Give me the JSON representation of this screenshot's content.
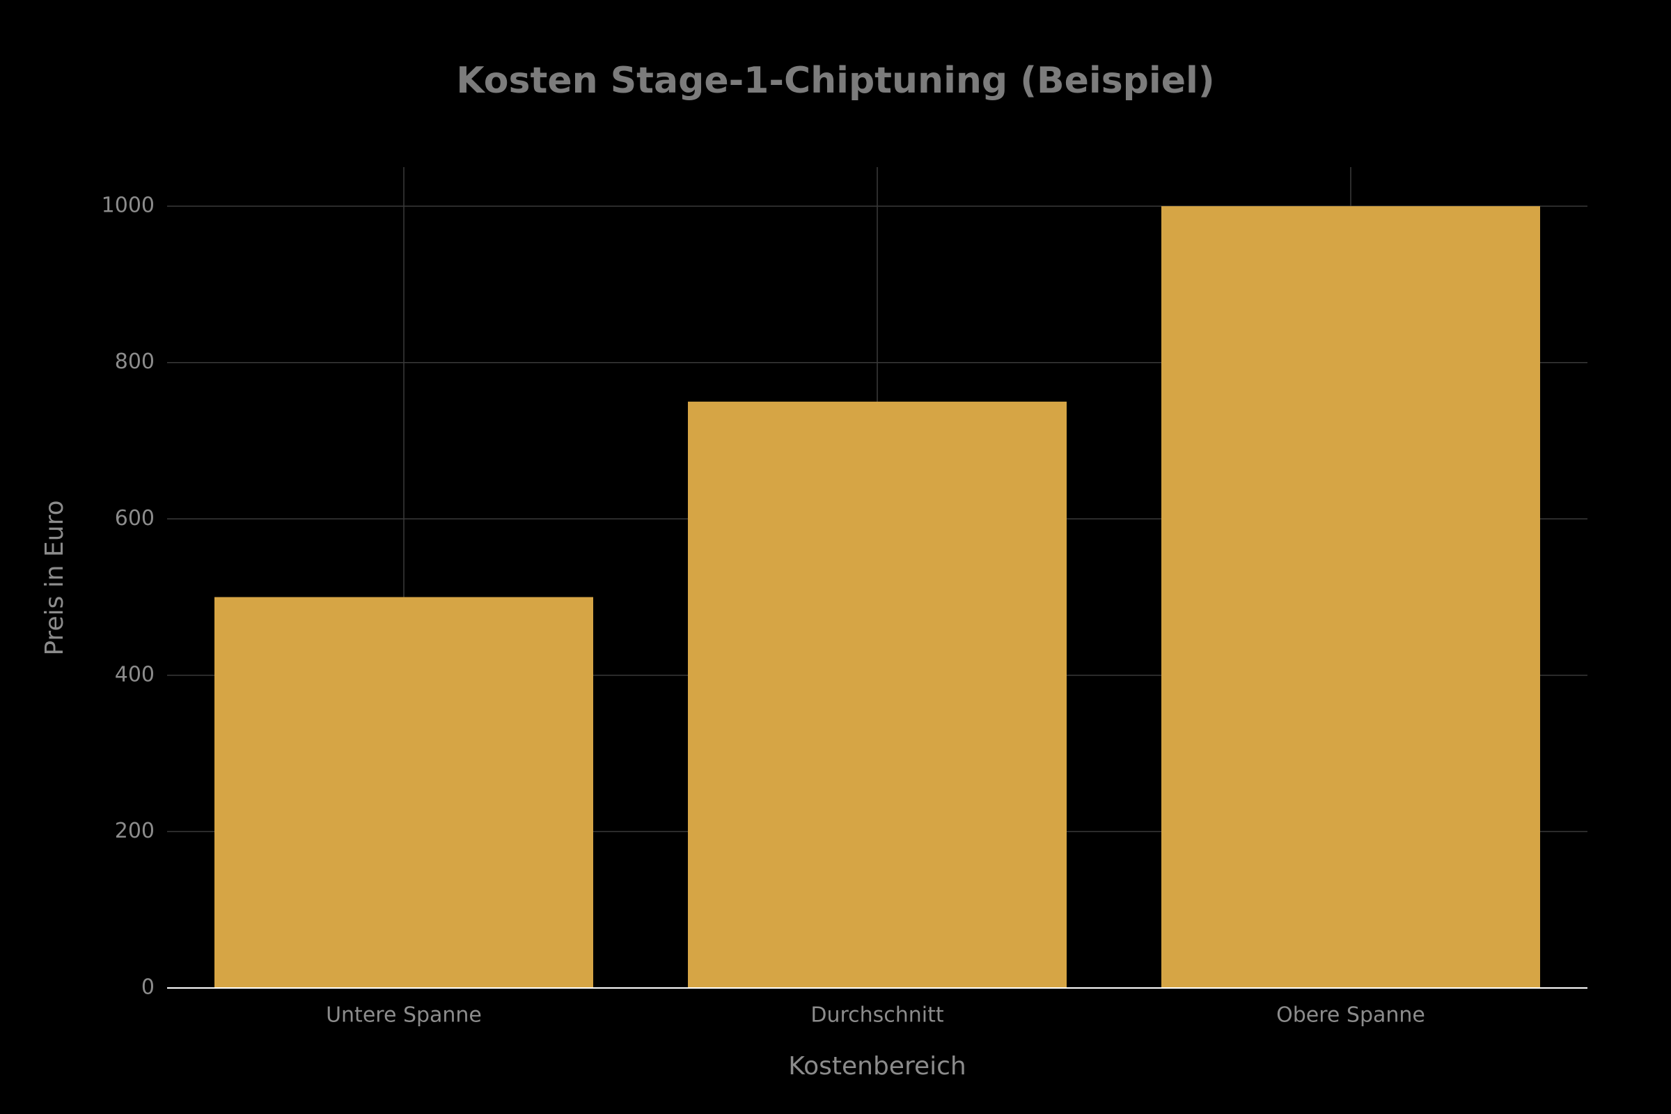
{
  "chart_data": {
    "type": "bar",
    "title": "Kosten Stage-1-Chiptuning (Beispiel)",
    "xlabel": "Kostenbereich",
    "ylabel": "Preis in Euro",
    "categories": [
      "Untere Spanne",
      "Durchschnitt",
      "Obere Spanne"
    ],
    "values": [
      500,
      750,
      1000
    ],
    "color": "#d6a545",
    "ylim": [
      0,
      1050
    ],
    "yticks": [
      0,
      200,
      400,
      600,
      800,
      1000
    ],
    "grid": true
  }
}
